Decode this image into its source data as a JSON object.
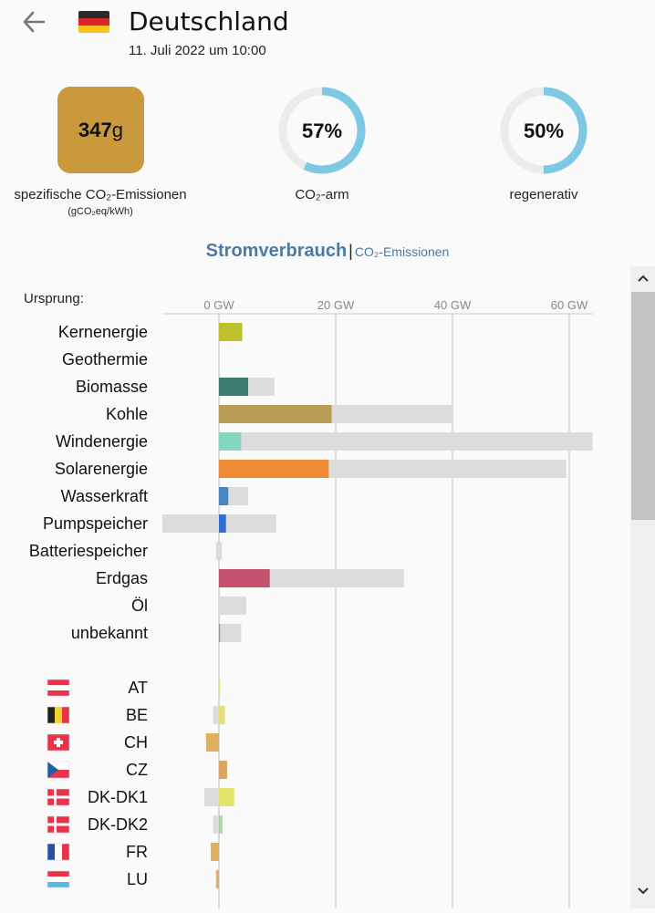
{
  "header": {
    "title": "Deutschland",
    "datetime": "11. Juli 2022 um 10:00",
    "back_icon": "arrow-left-icon",
    "flag_colors": [
      "#2b2b2b",
      "#d8262b",
      "#f7c51a"
    ]
  },
  "metrics": {
    "co2_value": "347",
    "co2_unit": "g",
    "co2_label": "spezifische CO₂-Emissionen",
    "co2_sub": "(gCO₂eq/kWh)",
    "co2_color": "#c9993c",
    "low_carbon_pct": 57,
    "low_carbon_value": "57%",
    "low_carbon_label": "CO₂-arm",
    "renewable_pct": 50,
    "renewable_value": "50%",
    "renewable_label": "regenerativ",
    "ring_color": "#7ec8e3",
    "ring_track_color": "#ececec"
  },
  "tabs": {
    "active": "Stromverbrauch",
    "separator": "|",
    "inactive": "CO₂-Emissionen"
  },
  "chart_data": {
    "type": "bar",
    "origin_label": "Ursprung:",
    "ticks": [
      "0 GW",
      "20 GW",
      "40 GW",
      "60 GW"
    ],
    "tick_values": [
      0,
      20,
      40,
      60
    ],
    "x_unit": "GW",
    "xlim": [
      -10,
      64
    ],
    "sources": [
      {
        "name": "Kernenergie",
        "value": 4.0,
        "capacity_min": 0,
        "capacity_max": 4.0,
        "color": "#bcc12c"
      },
      {
        "name": "Geothermie",
        "value": 0,
        "capacity_min": 0,
        "capacity_max": 0,
        "color": "#b0b0b0"
      },
      {
        "name": "Biomasse",
        "value": 5.0,
        "capacity_min": 0,
        "capacity_max": 9.5,
        "color": "#3b7e6f"
      },
      {
        "name": "Kohle",
        "value": 19.3,
        "capacity_min": 0,
        "capacity_max": 40.0,
        "color": "#b89b55"
      },
      {
        "name": "Windenergie",
        "value": 3.8,
        "capacity_min": 0,
        "capacity_max": 64.0,
        "color": "#84d6c0"
      },
      {
        "name": "Solarenergie",
        "value": 18.8,
        "capacity_min": 0,
        "capacity_max": 59.5,
        "color": "#ee8a35"
      },
      {
        "name": "Wasserkraft",
        "value": 1.6,
        "capacity_min": 0,
        "capacity_max": 5.0,
        "color": "#4b86c3"
      },
      {
        "name": "Pumpspeicher",
        "value": 1.2,
        "capacity_min": -9.7,
        "capacity_max": 9.8,
        "color": "#2f6fd4"
      },
      {
        "name": "Batteriespeicher",
        "value": 0,
        "capacity_min": -0.5,
        "capacity_max": 0.5,
        "color": "#b0b0b0"
      },
      {
        "name": "Erdgas",
        "value": 8.7,
        "capacity_min": 0,
        "capacity_max": 31.7,
        "color": "#c4526c"
      },
      {
        "name": "Öl",
        "value": 0,
        "capacity_min": 0,
        "capacity_max": 4.7,
        "color": "#b0b0b0"
      },
      {
        "name": "unbekannt",
        "value": 0.2,
        "capacity_min": 0,
        "capacity_max": 3.8,
        "color": "#999999"
      }
    ],
    "exchanges": [
      {
        "name": "AT",
        "flag": "at",
        "value": 0.1,
        "capacity_min": 0,
        "capacity_max": 0.2,
        "color": "#d4e36a"
      },
      {
        "name": "BE",
        "flag": "be",
        "value": 1.0,
        "capacity_min": -1.0,
        "capacity_max": 1.0,
        "color": "#e6e07a"
      },
      {
        "name": "CH",
        "flag": "ch",
        "value": -2.2,
        "capacity_min": -2.2,
        "capacity_max": 0,
        "color": "#ddb15f"
      },
      {
        "name": "CZ",
        "flag": "cz",
        "value": 1.4,
        "capacity_min": 0,
        "capacity_max": 1.4,
        "color": "#d8a764"
      },
      {
        "name": "DK-DK1",
        "flag": "dk",
        "value": 2.6,
        "capacity_min": -2.5,
        "capacity_max": 2.6,
        "color": "#e2e46a"
      },
      {
        "name": "DK-DK2",
        "flag": "dk",
        "value": 0.6,
        "capacity_min": -1.0,
        "capacity_max": 0.6,
        "color": "#a9d8a6"
      },
      {
        "name": "FR",
        "flag": "fr",
        "value": -1.4,
        "capacity_min": -1.4,
        "capacity_max": 0,
        "color": "#ddb15f"
      },
      {
        "name": "LU",
        "flag": "lu",
        "value": -0.5,
        "capacity_min": -0.5,
        "capacity_max": 0,
        "color": "#ddb15f"
      }
    ]
  }
}
